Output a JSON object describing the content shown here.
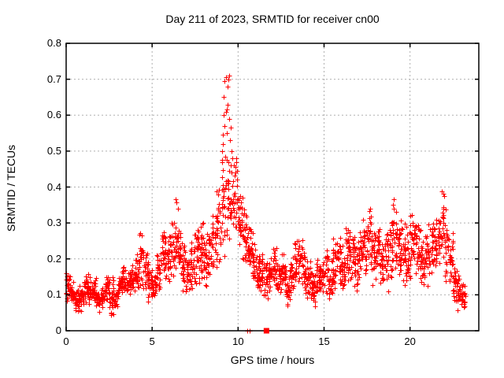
{
  "chart_data": {
    "type": "scatter",
    "title": "Day 211 of 2023, SRMTID for receiver cn00",
    "xlabel": "GPS time / hours",
    "ylabel": "SRMTID / TECUs",
    "xlim": [
      0,
      24
    ],
    "ylim": [
      0,
      0.8
    ],
    "xticks": [
      0,
      5,
      10,
      15,
      20
    ],
    "xtick_labels": [
      "0",
      "5",
      "10",
      "15",
      "20"
    ],
    "yticks": [
      0,
      0.1,
      0.2,
      0.3,
      0.4,
      0.5,
      0.6,
      0.7,
      0.8
    ],
    "ytick_labels": [
      "0",
      "0.1",
      "0.2",
      "0.3",
      "0.4",
      "0.5",
      "0.6",
      "0.7",
      "0.8"
    ],
    "grid": true,
    "legend": "none",
    "marker": "plus",
    "marker_color": "#ff0000",
    "grid_color": "#b0b0b0",
    "border_color": "#000000",
    "band_width": 0.25,
    "density_bands": [
      [
        0.0,
        0.07,
        0.18,
        26
      ],
      [
        0.25,
        0.06,
        0.14,
        26
      ],
      [
        0.5,
        0.05,
        0.12,
        26
      ],
      [
        0.75,
        0.05,
        0.13,
        26
      ],
      [
        1.0,
        0.07,
        0.16,
        26
      ],
      [
        1.25,
        0.04,
        0.17,
        26
      ],
      [
        1.5,
        0.07,
        0.15,
        24
      ],
      [
        1.75,
        0.05,
        0.12,
        24
      ],
      [
        2.0,
        0.06,
        0.13,
        24
      ],
      [
        2.25,
        0.08,
        0.16,
        24
      ],
      [
        2.5,
        0.02,
        0.16,
        26
      ],
      [
        2.75,
        0.05,
        0.13,
        24
      ],
      [
        3.0,
        0.08,
        0.16,
        24
      ],
      [
        3.25,
        0.1,
        0.18,
        24
      ],
      [
        3.5,
        0.09,
        0.17,
        24
      ],
      [
        3.75,
        0.1,
        0.19,
        24
      ],
      [
        4.0,
        0.1,
        0.22,
        24
      ],
      [
        4.25,
        0.12,
        0.31,
        24
      ],
      [
        4.5,
        0.1,
        0.25,
        24
      ],
      [
        4.75,
        0.07,
        0.2,
        24
      ],
      [
        5.0,
        0.08,
        0.18,
        24
      ],
      [
        5.25,
        0.1,
        0.24,
        24
      ],
      [
        5.5,
        0.12,
        0.33,
        24
      ],
      [
        5.75,
        0.12,
        0.28,
        24
      ],
      [
        6.0,
        0.14,
        0.33,
        24
      ],
      [
        6.25,
        0.14,
        0.37,
        24
      ],
      [
        6.5,
        0.12,
        0.3,
        24
      ],
      [
        6.75,
        0.1,
        0.25,
        24
      ],
      [
        7.0,
        0.08,
        0.22,
        24
      ],
      [
        7.25,
        0.1,
        0.28,
        24
      ],
      [
        7.5,
        0.12,
        0.33,
        24
      ],
      [
        7.75,
        0.1,
        0.35,
        24
      ],
      [
        8.0,
        0.1,
        0.28,
        24
      ],
      [
        8.25,
        0.12,
        0.3,
        24
      ],
      [
        8.5,
        0.15,
        0.38,
        24
      ],
      [
        8.75,
        0.18,
        0.42,
        24
      ],
      [
        9.0,
        0.2,
        0.48,
        22
      ],
      [
        9.25,
        0.22,
        0.5,
        20
      ],
      [
        9.5,
        0.22,
        0.46,
        20
      ],
      [
        9.75,
        0.2,
        0.5,
        22
      ],
      [
        10.0,
        0.2,
        0.4,
        28
      ],
      [
        10.25,
        0.18,
        0.38,
        28
      ],
      [
        10.5,
        0.15,
        0.32,
        24
      ],
      [
        10.75,
        0.12,
        0.28,
        24
      ],
      [
        11.0,
        0.1,
        0.24,
        24
      ],
      [
        11.25,
        0.1,
        0.22,
        24
      ],
      [
        11.5,
        0.08,
        0.2,
        24
      ],
      [
        11.75,
        0.1,
        0.22,
        24
      ],
      [
        12.0,
        0.1,
        0.24,
        24
      ],
      [
        12.25,
        0.08,
        0.2,
        24
      ],
      [
        12.5,
        0.1,
        0.22,
        24
      ],
      [
        12.75,
        0.06,
        0.18,
        24
      ],
      [
        13.0,
        0.1,
        0.22,
        24
      ],
      [
        13.25,
        0.12,
        0.26,
        24
      ],
      [
        13.5,
        0.1,
        0.28,
        24
      ],
      [
        13.75,
        0.08,
        0.24,
        24
      ],
      [
        14.0,
        0.08,
        0.2,
        24
      ],
      [
        14.25,
        0.06,
        0.18,
        24
      ],
      [
        14.5,
        0.08,
        0.2,
        24
      ],
      [
        14.75,
        0.08,
        0.22,
        24
      ],
      [
        15.0,
        0.1,
        0.24,
        24
      ],
      [
        15.25,
        0.08,
        0.2,
        24
      ],
      [
        15.5,
        0.1,
        0.26,
        24
      ],
      [
        15.75,
        0.12,
        0.28,
        24
      ],
      [
        16.0,
        0.1,
        0.24,
        24
      ],
      [
        16.25,
        0.12,
        0.3,
        24
      ],
      [
        16.5,
        0.12,
        0.28,
        24
      ],
      [
        16.75,
        0.1,
        0.26,
        24
      ],
      [
        17.0,
        0.12,
        0.3,
        24
      ],
      [
        17.25,
        0.14,
        0.32,
        24
      ],
      [
        17.5,
        0.15,
        0.36,
        24
      ],
      [
        17.75,
        0.12,
        0.3,
        24
      ],
      [
        18.0,
        0.14,
        0.32,
        24
      ],
      [
        18.25,
        0.12,
        0.28,
        24
      ],
      [
        18.5,
        0.1,
        0.3,
        24
      ],
      [
        18.75,
        0.12,
        0.34,
        24
      ],
      [
        19.0,
        0.15,
        0.41,
        24
      ],
      [
        19.25,
        0.14,
        0.36,
        24
      ],
      [
        19.5,
        0.12,
        0.32,
        24
      ],
      [
        19.75,
        0.1,
        0.3,
        24
      ],
      [
        20.0,
        0.15,
        0.4,
        24
      ],
      [
        20.25,
        0.14,
        0.34,
        24
      ],
      [
        20.5,
        0.12,
        0.3,
        24
      ],
      [
        20.75,
        0.1,
        0.28,
        24
      ],
      [
        21.0,
        0.12,
        0.32,
        24
      ],
      [
        21.25,
        0.14,
        0.34,
        24
      ],
      [
        21.5,
        0.15,
        0.36,
        24
      ],
      [
        21.75,
        0.16,
        0.4,
        24
      ],
      [
        22.0,
        0.12,
        0.34,
        24
      ],
      [
        22.25,
        0.1,
        0.28,
        24
      ],
      [
        22.5,
        0.06,
        0.22,
        26
      ],
      [
        22.75,
        0.05,
        0.16,
        28
      ],
      [
        23.0,
        0.06,
        0.14,
        20
      ]
    ],
    "spike_points": [
      [
        9.05,
        0.5
      ],
      [
        9.1,
        0.545
      ],
      [
        9.15,
        0.6
      ],
      [
        9.18,
        0.65
      ],
      [
        9.22,
        0.695
      ],
      [
        9.3,
        0.705
      ],
      [
        9.38,
        0.68
      ],
      [
        9.42,
        0.7
      ],
      [
        9.47,
        0.71
      ],
      [
        9.28,
        0.61
      ],
      [
        9.35,
        0.615
      ],
      [
        9.48,
        0.59
      ],
      [
        9.55,
        0.565
      ],
      [
        9.12,
        0.52
      ],
      [
        9.33,
        0.55
      ],
      [
        9.52,
        0.53
      ],
      [
        9.62,
        0.5
      ],
      [
        9.07,
        0.47
      ],
      [
        9.25,
        0.485
      ],
      [
        9.45,
        0.47
      ],
      [
        9.58,
        0.46
      ],
      [
        9.68,
        0.48
      ],
      [
        9.75,
        0.46
      ],
      [
        9.85,
        0.44
      ],
      [
        9.92,
        0.42
      ],
      [
        9.6,
        0.44
      ],
      [
        9.2,
        0.57
      ],
      [
        9.4,
        0.63
      ]
    ],
    "baseline_plus_markers": [
      [
        10.55,
        0
      ],
      [
        10.68,
        0
      ]
    ],
    "baseline_square_markers": [
      [
        11.65,
        0
      ]
    ]
  }
}
